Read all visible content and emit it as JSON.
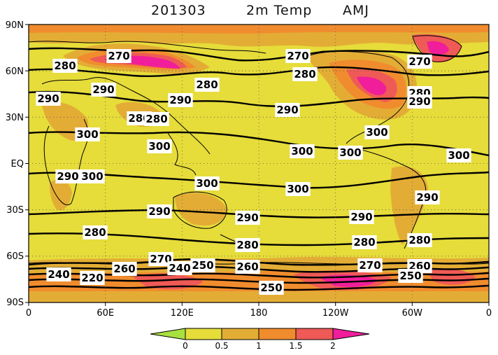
{
  "title": {
    "date": "201303",
    "variable": "2m Temp",
    "season": "AMJ"
  },
  "lat_ticks": [
    "90N",
    "60N",
    "30N",
    "EQ",
    "30S",
    "60S",
    "90S"
  ],
  "lon_ticks": [
    "0",
    "60E",
    "120E",
    "180",
    "120W",
    "60W",
    "0"
  ],
  "contour_labels": [
    "270",
    "280",
    "290",
    "300",
    "260",
    "250",
    "240",
    "220"
  ],
  "colorbar": {
    "ticks": [
      "0",
      "0.5",
      "1",
      "1.5",
      "2"
    ],
    "colors": [
      "#a8e040",
      "#e6dc3a",
      "#e3ad35",
      "#f08c2e",
      "#ef5a56",
      "#f01e9a"
    ]
  }
}
